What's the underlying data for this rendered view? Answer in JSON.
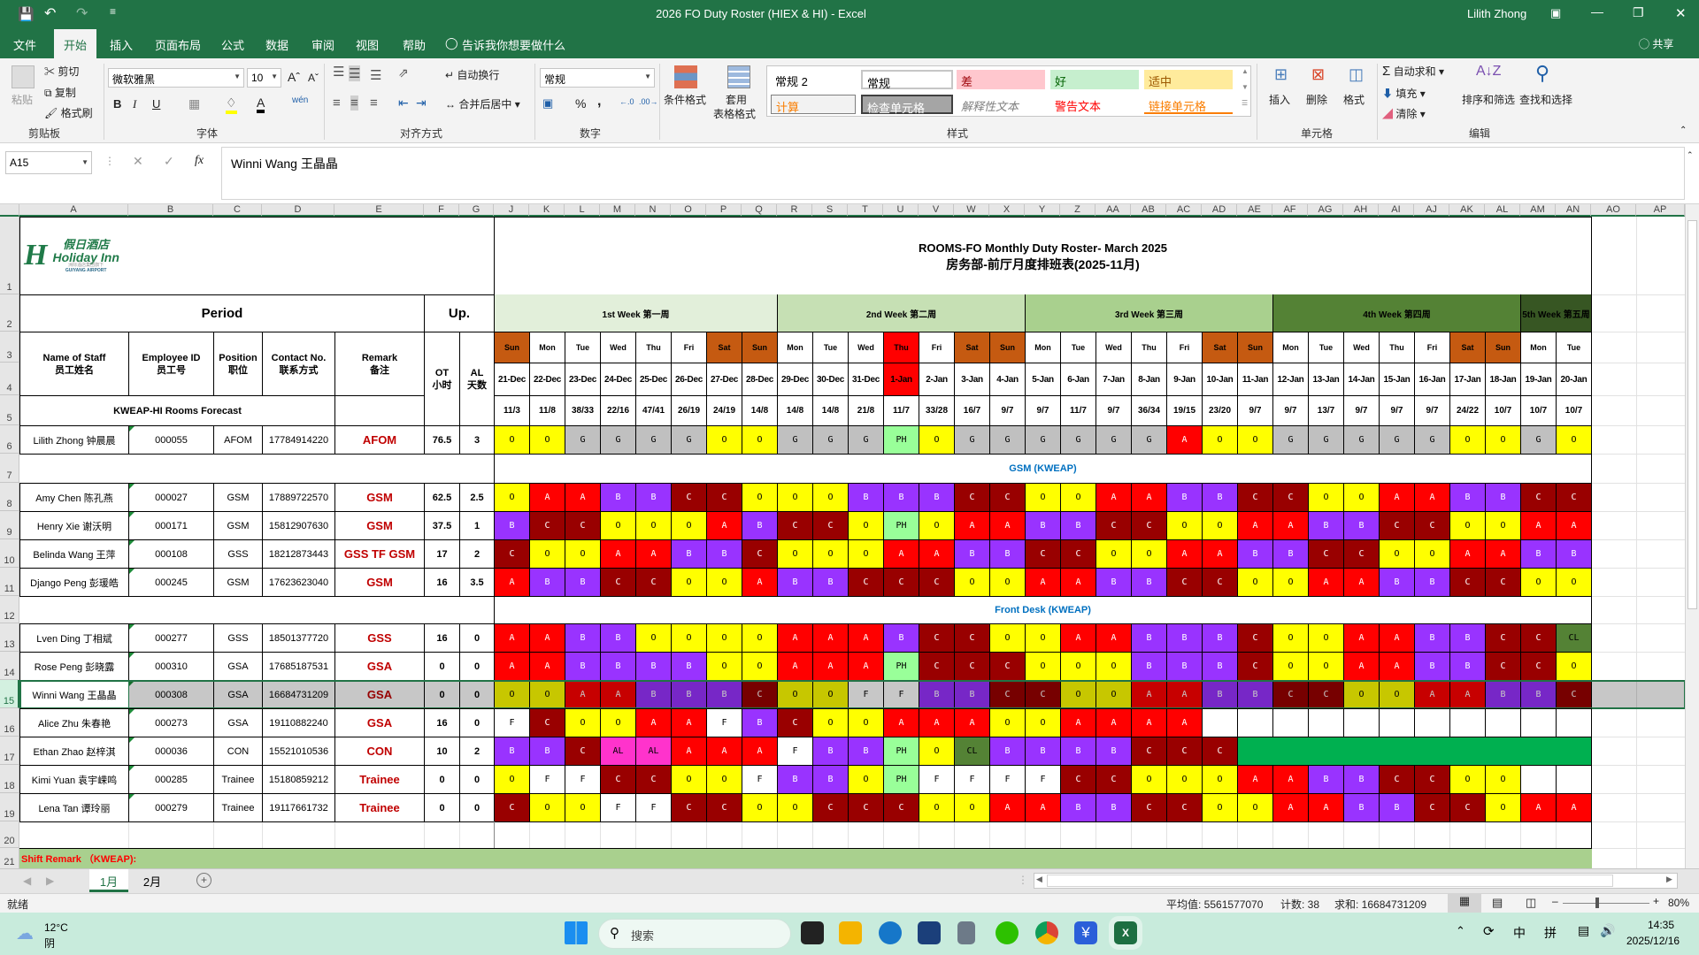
{
  "titlebar": {
    "title": "2026 FO Duty Roster (HIEX & HI)  -  Excel",
    "user": "Lilith Zhong"
  },
  "menu": {
    "tabs": [
      "文件",
      "开始",
      "插入",
      "页面布局",
      "公式",
      "数据",
      "审阅",
      "视图",
      "帮助"
    ],
    "active": "开始",
    "tell_me": "告诉我你想要做什么",
    "share": "共享"
  },
  "ribbon": {
    "clipboard": {
      "label": "剪贴板",
      "paste": "粘贴",
      "cut": "剪切",
      "copy": "复制",
      "format_painter": "格式刷"
    },
    "font": {
      "label": "字体",
      "name": "微软雅黑",
      "size": "10",
      "bold": "B",
      "italic": "I",
      "underline": "U"
    },
    "alignment": {
      "label": "对齐方式",
      "wrap": "自动换行",
      "merge": "合并后居中"
    },
    "number": {
      "label": "数字",
      "format": "常规",
      "percent": "%",
      "comma": ","
    },
    "styles": {
      "label": "样式",
      "cond_format": "条件格式",
      "table_format_1": "套用",
      "table_format_2": "表格格式",
      "gallery": [
        {
          "text": "常规 2",
          "bg": "#ffffff",
          "fg": "#000000"
        },
        {
          "text": "常规",
          "bg": "#ffffff",
          "fg": "#000000"
        },
        {
          "text": "差",
          "bg": "#ffc7ce",
          "fg": "#9c0006"
        },
        {
          "text": "好",
          "bg": "#c6efce",
          "fg": "#006100"
        },
        {
          "text": "适中",
          "bg": "#ffeb9c",
          "fg": "#9c5700"
        },
        {
          "text": "计算",
          "bg": "#f2f2f2",
          "fg": "#fa7d00"
        },
        {
          "text": "检查单元格",
          "bg": "#a5a5a5",
          "fg": "#ffffff"
        },
        {
          "text": "解释性文本",
          "bg": "#ffffff",
          "fg": "#7f7f7f"
        },
        {
          "text": "警告文本",
          "bg": "#ffffff",
          "fg": "#ff0000"
        },
        {
          "text": "链接单元格",
          "bg": "#ffffff",
          "fg": "#fa7d00"
        }
      ]
    },
    "cells": {
      "label": "单元格",
      "insert": "插入",
      "delete": "删除",
      "format": "格式"
    },
    "editing": {
      "label": "编辑",
      "autosum": "自动求和",
      "fill": "填充",
      "clear": "清除",
      "sort": "排序和筛选",
      "find": "查找和选择"
    }
  },
  "formula_bar": {
    "name_box": "A15",
    "content": "Winni Wang 王晶晶",
    "fx": "fx"
  },
  "columns": [
    "A",
    "B",
    "C",
    "D",
    "E",
    "F",
    "G",
    "J",
    "K",
    "L",
    "M",
    "N",
    "O",
    "P",
    "Q",
    "R",
    "S",
    "T",
    "U",
    "V",
    "W",
    "X",
    "Y",
    "Z",
    "AA",
    "AB",
    "AC",
    "AD",
    "AE",
    "AF",
    "AG",
    "AH",
    "AI",
    "AJ",
    "AK",
    "AL",
    "AM",
    "AN",
    "AO",
    "AP"
  ],
  "rows": [
    "1",
    "2",
    "3",
    "4",
    "5",
    "6",
    "7",
    "8",
    "9",
    "10",
    "11",
    "12",
    "13",
    "14",
    "15",
    "16",
    "17",
    "18",
    "19",
    "20",
    "21"
  ],
  "sheet": {
    "logo": {
      "cn": "假日酒店",
      "en": "Holiday Inn",
      "sub": "洲际酒店集团旗下",
      "loc": "GUIYANG AIRPORT",
      "color": "#1f7a48"
    },
    "title_en": "ROOMS-FO Monthly Duty Roster- March 2025",
    "title_cn": "房务部-前厅月度排班表(2025-11月)",
    "period": "Period",
    "up": "Up.",
    "headers": {
      "name": "Name of Staff",
      "name_cn": "员工姓名",
      "id": "Employee ID",
      "id_cn": "员工号",
      "position": "Position",
      "position_cn": "职位",
      "contact": "Contact No.",
      "contact_cn": "联系方式",
      "remark": "Remark",
      "remark_cn": "备注",
      "ot": "OT",
      "ot_cn": "小时",
      "al": "AL",
      "al_cn": "天数"
    },
    "forecast_label": "KWEAP-HI Rooms Forecast",
    "weeks": [
      {
        "label": "1st Week 第一周",
        "days": 8,
        "color": "#e2efda"
      },
      {
        "label": "2nd Week 第二周",
        "days": 7,
        "color": "#c6e0b4"
      },
      {
        "label": "3rd Week 第三周",
        "days": 7,
        "color": "#a9d08e"
      },
      {
        "label": "4th Week 第四周",
        "days": 7,
        "color": "#548235"
      },
      {
        "label": "5th Week 第五周",
        "days": 2,
        "color": "#375623"
      }
    ],
    "days": [
      "Sun",
      "Mon",
      "Tue",
      "Wed",
      "Thu",
      "Fri",
      "Sat",
      "Sun",
      "Mon",
      "Tue",
      "Wed",
      "Thu",
      "Fri",
      "Sat",
      "Sun",
      "Mon",
      "Tue",
      "Wed",
      "Thu",
      "Fri",
      "Sat",
      "Sun",
      "Mon",
      "Tue",
      "Wed",
      "Thu",
      "Fri",
      "Sat",
      "Sun",
      "Mon",
      "Tue"
    ],
    "dates": [
      "21-Dec",
      "22-Dec",
      "23-Dec",
      "24-Dec",
      "25-Dec",
      "26-Dec",
      "27-Dec",
      "28-Dec",
      "29-Dec",
      "30-Dec",
      "31-Dec",
      "1-Jan",
      "2-Jan",
      "3-Jan",
      "4-Jan",
      "5-Jan",
      "6-Jan",
      "7-Jan",
      "8-Jan",
      "9-Jan",
      "10-Jan",
      "11-Jan",
      "12-Jan",
      "13-Jan",
      "14-Jan",
      "15-Jan",
      "16-Jan",
      "17-Jan",
      "18-Jan",
      "19-Jan",
      "20-Jan"
    ],
    "holiday_index": 11,
    "forecast": [
      "11/3",
      "11/8",
      "38/33",
      "22/16",
      "47/41",
      "26/19",
      "24/19",
      "14/8",
      "14/8",
      "14/8",
      "21/8",
      "11/7",
      "33/28",
      "16/7",
      "9/7",
      "9/7",
      "11/7",
      "9/7",
      "36/34",
      "19/15",
      "23/20",
      "9/7",
      "9/7",
      "13/7",
      "9/7",
      "9/7",
      "9/7",
      "24/22",
      "10/7",
      "10/7",
      "10/7"
    ],
    "weekend_color": "#c55a11",
    "holiday_color": "#ff0000",
    "shift_remark": "Shift Remark （KWEAP):"
  },
  "shift_colors": {
    "O": {
      "bg": "#ffff00",
      "fg": "#000000"
    },
    "A": {
      "bg": "#ff0000",
      "fg": "#ffffff"
    },
    "B": {
      "bg": "#9933ff",
      "fg": "#ffffff"
    },
    "C": {
      "bg": "#990000",
      "fg": "#ffffff"
    },
    "G": {
      "bg": "#c0c0c0",
      "fg": "#000000"
    },
    "PH": {
      "bg": "#99ff99",
      "fg": "#000000"
    },
    "F": {
      "bg": "#ffffff",
      "fg": "#000000"
    },
    "AL": {
      "bg": "#ff33cc",
      "fg": "#000000"
    },
    "CL": {
      "bg": "#548235",
      "fg": "#000000"
    }
  },
  "roster": {
    "lead": [
      {
        "name": "Lilith Zhong 钟晨晨",
        "id": "000055",
        "position": "AFOM",
        "contact": "17784914220",
        "remark": "AFOM",
        "ot": "76.5",
        "al": "3",
        "shifts": [
          "O",
          "O",
          "G",
          "G",
          "G",
          "G",
          "O",
          "O",
          "G",
          "G",
          "G",
          "PH",
          "O",
          "G",
          "G",
          "G",
          "G",
          "G",
          "G",
          "A",
          "O",
          "O",
          "G",
          "G",
          "G",
          "G",
          "G",
          "O",
          "O",
          "G",
          "O"
        ]
      }
    ],
    "sections": [
      {
        "title": "GSM (KWEAP)",
        "staff": [
          {
            "name": "Amy Chen 陈孔燕",
            "id": "000027",
            "position": "GSM",
            "contact": "17889722570",
            "remark": "GSM",
            "ot": "62.5",
            "al": "2.5",
            "shifts": [
              "O",
              "A",
              "A",
              "B",
              "B",
              "C",
              "C",
              "O",
              "O",
              "O",
              "B",
              "B",
              "B",
              "C",
              "C",
              "O",
              "O",
              "A",
              "A",
              "B",
              "B",
              "C",
              "C",
              "O",
              "O",
              "A",
              "A",
              "B",
              "B",
              "C",
              "C"
            ]
          },
          {
            "name": "Henry Xie 谢沃明",
            "id": "000171",
            "position": "GSM",
            "contact": "15812907630",
            "remark": "GSM",
            "ot": "37.5",
            "al": "1",
            "shifts": [
              "B",
              "C",
              "C",
              "O",
              "O",
              "O",
              "A",
              "B",
              "C",
              "C",
              "O",
              "PH",
              "O",
              "A",
              "A",
              "B",
              "B",
              "C",
              "C",
              "O",
              "O",
              "A",
              "A",
              "B",
              "B",
              "C",
              "C",
              "O",
              "O",
              "A",
              "A"
            ]
          },
          {
            "name": "Belinda Wang 王萍",
            "id": "000108",
            "position": "GSS",
            "contact": "18212873443",
            "remark": "GSS TF GSM",
            "ot": "17",
            "al": "2",
            "shifts": [
              "C",
              "O",
              "O",
              "A",
              "A",
              "B",
              "B",
              "C",
              "O",
              "O",
              "O",
              "A",
              "A",
              "B",
              "B",
              "C",
              "C",
              "O",
              "O",
              "A",
              "A",
              "B",
              "B",
              "C",
              "C",
              "O",
              "O",
              "A",
              "A",
              "B",
              "B"
            ]
          },
          {
            "name": "Django Peng 彭瑗皓",
            "id": "000245",
            "position": "GSM",
            "contact": "17623623040",
            "remark": "GSM",
            "ot": "16",
            "al": "3.5",
            "shifts": [
              "A",
              "B",
              "B",
              "C",
              "C",
              "O",
              "O",
              "A",
              "B",
              "B",
              "C",
              "C",
              "C",
              "O",
              "O",
              "A",
              "A",
              "B",
              "B",
              "C",
              "C",
              "O",
              "O",
              "A",
              "A",
              "B",
              "B",
              "C",
              "C",
              "O",
              "O"
            ]
          }
        ]
      },
      {
        "title": "Front Desk (KWEAP)",
        "staff": [
          {
            "name": "Lven Ding 丁相斌",
            "id": "000277",
            "position": "GSS",
            "contact": "18501377720",
            "remark": "GSS",
            "ot": "16",
            "al": "0",
            "shifts": [
              "A",
              "A",
              "B",
              "B",
              "O",
              "O",
              "O",
              "O",
              "A",
              "A",
              "A",
              "B",
              "C",
              "C",
              "O",
              "O",
              "A",
              "A",
              "B",
              "B",
              "B",
              "C",
              "O",
              "O",
              "A",
              "A",
              "B",
              "B",
              "C",
              "C",
              "CL"
            ]
          },
          {
            "name": "Rose Peng 彭晓露",
            "id": "000310",
            "position": "GSA",
            "contact": "17685187531",
            "remark": "GSA",
            "ot": "0",
            "al": "0",
            "shifts": [
              "A",
              "A",
              "B",
              "B",
              "B",
              "B",
              "O",
              "O",
              "A",
              "A",
              "A",
              "PH",
              "C",
              "C",
              "C",
              "O",
              "O",
              "O",
              "B",
              "B",
              "B",
              "C",
              "O",
              "O",
              "A",
              "A",
              "B",
              "B",
              "C",
              "C",
              "O"
            ]
          },
          {
            "name": "Winni Wang 王晶晶",
            "id": "000308",
            "position": "GSA",
            "contact": "16684731209",
            "remark": "GSA",
            "ot": "0",
            "al": "0",
            "selected": true,
            "shifts": [
              "O",
              "O",
              "A",
              "A",
              "B",
              "B",
              "B",
              "C",
              "O",
              "O",
              "F",
              "F",
              "B",
              "B",
              "C",
              "C",
              "O",
              "O",
              "A",
              "A",
              "B",
              "B",
              "C",
              "C",
              "O",
              "O",
              "A",
              "A",
              "B",
              "B",
              "C"
            ]
          },
          {
            "name": "Alice Zhu 朱春艳",
            "id": "000273",
            "position": "GSA",
            "contact": "19110882240",
            "remark": "GSA",
            "ot": "16",
            "al": "0",
            "shifts": [
              "F",
              "C",
              "O",
              "O",
              "A",
              "A",
              "F",
              "B",
              "C",
              "O",
              "O",
              "A",
              "A",
              "A",
              "O",
              "O",
              "A",
              "A",
              "A",
              "A",
              "",
              "",
              "",
              "",
              "",
              "",
              "",
              "",
              "",
              "",
              ""
            ]
          },
          {
            "name": "Ethan Zhao 赵梓淇",
            "id": "000036",
            "position": "CON",
            "contact": "15521010536",
            "remark": "CON",
            "ot": "10",
            "al": "2",
            "blank_fill_color": "#00b050",
            "shifts": [
              "B",
              "B",
              "C",
              "AL",
              "AL",
              "A",
              "A",
              "A",
              "F",
              "B",
              "B",
              "PH",
              "O",
              "CL",
              "B",
              "B",
              "B",
              "B",
              "C",
              "C",
              "C",
              "",
              "",
              "",
              "",
              "",
              "",
              "",
              "",
              "",
              ""
            ]
          },
          {
            "name": "Kimi Yuan 袁宇嵘鸣",
            "id": "000285",
            "position": "Trainee",
            "contact": "15180859212",
            "remark": "Trainee",
            "ot": "0",
            "al": "0",
            "shifts": [
              "O",
              "F",
              "F",
              "C",
              "C",
              "O",
              "O",
              "F",
              "B",
              "B",
              "O",
              "PH",
              "F",
              "F",
              "F",
              "F",
              "C",
              "C",
              "O",
              "O",
              "O",
              "A",
              "A",
              "B",
              "B",
              "C",
              "C",
              "O",
              "O",
              "",
              ""
            ]
          },
          {
            "name": "Lena Tan 谭玲丽",
            "id": "000279",
            "position": "Trainee",
            "contact": "19117661732",
            "remark": "Trainee",
            "ot": "0",
            "al": "0",
            "shifts": [
              "C",
              "O",
              "O",
              "F",
              "F",
              "C",
              "C",
              "O",
              "O",
              "C",
              "C",
              "C",
              "O",
              "O",
              "A",
              "A",
              "B",
              "B",
              "C",
              "C",
              "O",
              "O",
              "A",
              "A",
              "B",
              "B",
              "C",
              "C",
              "O",
              "A",
              "A"
            ]
          }
        ]
      }
    ]
  },
  "sheet_tabs": {
    "tabs": [
      "1月",
      "2月"
    ],
    "active": "1月",
    "add": "+"
  },
  "status": {
    "ready": "就绪",
    "average": "平均值: 5561577070",
    "count": "计数: 38",
    "sum": "求和: 16684731209",
    "zoom": "80%"
  },
  "taskbar": {
    "temp": "12°C",
    "weather": "阴",
    "search": "搜索",
    "ime1": "中",
    "ime2": "拼",
    "time": "14:35",
    "date": "2025/12/16"
  }
}
